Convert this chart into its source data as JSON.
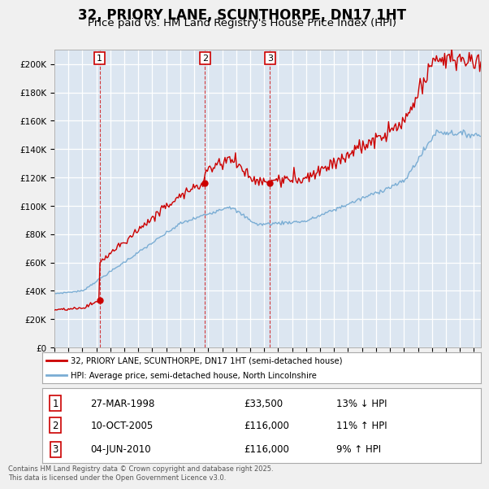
{
  "title": "32, PRIORY LANE, SCUNTHORPE, DN17 1HT",
  "subtitle": "Price paid vs. HM Land Registry's House Price Index (HPI)",
  "background_color": "#dce6f1",
  "fig_bg_color": "#f5f5f5",
  "grid_color": "#ffffff",
  "ylim": [
    0,
    210000
  ],
  "yticks": [
    0,
    20000,
    40000,
    60000,
    80000,
    100000,
    120000,
    140000,
    160000,
    180000,
    200000
  ],
  "ytick_labels": [
    "£0",
    "£20K",
    "£40K",
    "£60K",
    "£80K",
    "£100K",
    "£120K",
    "£140K",
    "£160K",
    "£180K",
    "£200K"
  ],
  "xlim_start": 1995.0,
  "xlim_end": 2025.5,
  "xticks": [
    1995,
    1996,
    1997,
    1998,
    1999,
    2000,
    2001,
    2002,
    2003,
    2004,
    2005,
    2006,
    2007,
    2008,
    2009,
    2010,
    2011,
    2012,
    2013,
    2014,
    2015,
    2016,
    2017,
    2018,
    2019,
    2020,
    2021,
    2022,
    2023,
    2024,
    2025
  ],
  "sale_color": "#cc0000",
  "hpi_color": "#7aadd4",
  "sale_label": "32, PRIORY LANE, SCUNTHORPE, DN17 1HT (semi-detached house)",
  "hpi_label": "HPI: Average price, semi-detached house, North Lincolnshire",
  "transactions": [
    {
      "num": 1,
      "date_decimal": 1998.23,
      "price": 33500,
      "label": "27-MAR-1998",
      "price_str": "£33,500",
      "change": "13% ↓ HPI"
    },
    {
      "num": 2,
      "date_decimal": 2005.77,
      "price": 116000,
      "label": "10-OCT-2005",
      "price_str": "£116,000",
      "change": "11% ↑ HPI"
    },
    {
      "num": 3,
      "date_decimal": 2010.42,
      "price": 116000,
      "label": "04-JUN-2010",
      "price_str": "£116,000",
      "change": "9% ↑ HPI"
    }
  ],
  "footer": "Contains HM Land Registry data © Crown copyright and database right 2025.\nThis data is licensed under the Open Government Licence v3.0.",
  "title_fontsize": 12,
  "subtitle_fontsize": 9.5
}
